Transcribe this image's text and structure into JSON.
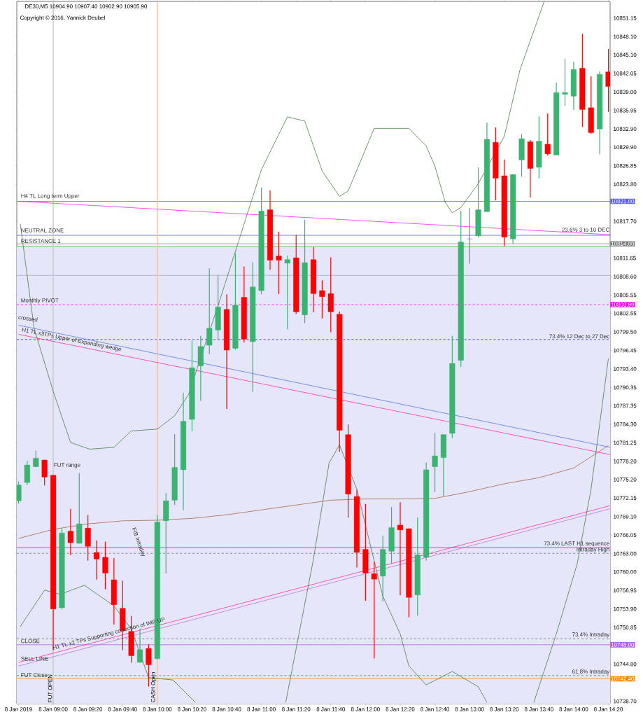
{
  "chart_data": {
    "type": "candlestick",
    "title": "DE30,M5  10904.90 10907.40 10902.90 10905.90",
    "subtitle": "Copyright © 2016, Yannick Deubel",
    "x": [
      "2019-01-08T08:40",
      "2019-01-08T08:45",
      "2019-01-08T08:50",
      "2019-01-08T08:55",
      "2019-01-08T09:00",
      "2019-01-08T09:05",
      "2019-01-08T09:10",
      "2019-01-08T09:15",
      "2019-01-08T09:20",
      "2019-01-08T09:25",
      "2019-01-08T09:30",
      "2019-01-08T09:35",
      "2019-01-08T09:40",
      "2019-01-08T09:45",
      "2019-01-08T09:50",
      "2019-01-08T09:55",
      "2019-01-08T10:00",
      "2019-01-08T10:05",
      "2019-01-08T10:10",
      "2019-01-08T10:15",
      "2019-01-08T10:20",
      "2019-01-08T10:25",
      "2019-01-08T10:30",
      "2019-01-08T10:35",
      "2019-01-08T10:40",
      "2019-01-08T10:45",
      "2019-01-08T10:50",
      "2019-01-08T10:55",
      "2019-01-08T11:00",
      "2019-01-08T11:05",
      "2019-01-08T11:10",
      "2019-01-08T11:15",
      "2019-01-08T11:20",
      "2019-01-08T11:25",
      "2019-01-08T11:30",
      "2019-01-08T11:35",
      "2019-01-08T11:40",
      "2019-01-08T11:45",
      "2019-01-08T11:50",
      "2019-01-08T11:55",
      "2019-01-08T12:00",
      "2019-01-08T12:05",
      "2019-01-08T12:10",
      "2019-01-08T12:15",
      "2019-01-08T12:20",
      "2019-01-08T12:25",
      "2019-01-08T12:30",
      "2019-01-08T12:35",
      "2019-01-08T12:40",
      "2019-01-08T12:45",
      "2019-01-08T12:50",
      "2019-01-08T12:55",
      "2019-01-08T13:00",
      "2019-01-08T13:05",
      "2019-01-08T13:10",
      "2019-01-08T13:15",
      "2019-01-08T13:20",
      "2019-01-08T13:25",
      "2019-01-08T13:30",
      "2019-01-08T13:35",
      "2019-01-08T13:40",
      "2019-01-08T13:45",
      "2019-01-08T13:50",
      "2019-01-08T13:55",
      "2019-01-08T14:00",
      "2019-01-08T14:05",
      "2019-01-08T14:10",
      "2019-01-08T14:15",
      "2019-01-08T14:20"
    ],
    "ohlc": [
      [
        10771.7,
        10774.8,
        10771.3,
        10774.3
      ],
      [
        10774.7,
        10778.2,
        10774.4,
        10777.6
      ],
      [
        10777.3,
        10779.9,
        10777.3,
        10778.7
      ],
      [
        10778.4,
        10778.4,
        10774.3,
        10775.6
      ],
      [
        10775.9,
        10775.9,
        10747.2,
        10753.9
      ],
      [
        10754.1,
        10767.1,
        10753.9,
        10766.4
      ],
      [
        10766.7,
        10770.3,
        10762.8,
        10764.8
      ],
      [
        10764.7,
        10776.2,
        10764.7,
        10767.9
      ],
      [
        10767.2,
        10769.3,
        10761.9,
        10764.2
      ],
      [
        10763.2,
        10765.1,
        10758.8,
        10762.1
      ],
      [
        10762.4,
        10764.9,
        10757.2,
        10759.8
      ],
      [
        10758.7,
        10762.2,
        10751.4,
        10754.6
      ],
      [
        10754.0,
        10758.5,
        10747.2,
        10750.3
      ],
      [
        10750.2,
        10752.7,
        10745.1,
        10746.2
      ],
      [
        10745.1,
        10750.6,
        10745.1,
        10747.2
      ],
      [
        10747.4,
        10748.0,
        10741.2,
        10744.7
      ],
      [
        10745.7,
        10769.3,
        10745.7,
        10768.2
      ],
      [
        10768.4,
        10772.9,
        10759.8,
        10771.7
      ],
      [
        10771.8,
        10782.6,
        10771.1,
        10777.2
      ],
      [
        10776.8,
        10789.4,
        10770.2,
        10784.8
      ],
      [
        10785.1,
        10798.0,
        10783.2,
        10793.6
      ],
      [
        10793.9,
        10798.8,
        10788.2,
        10797.1
      ],
      [
        10797.3,
        10809.9,
        10795.9,
        10800.1
      ],
      [
        10799.8,
        10808.8,
        10798.2,
        10803.6
      ],
      [
        10803.2,
        10805.6,
        10786.9,
        10796.5
      ],
      [
        10796.8,
        10812.4,
        10796.6,
        10803.9
      ],
      [
        10805.2,
        10810.2,
        10797.8,
        10798.3
      ],
      [
        10797.9,
        10810.9,
        10789.7,
        10806.9
      ],
      [
        10806.3,
        10823.2,
        10805.8,
        10819.4
      ],
      [
        10819.6,
        10822.7,
        10809.8,
        10811.3
      ],
      [
        10812.0,
        10815.9,
        10805.8,
        10811.3
      ],
      [
        10810.8,
        10812.0,
        10800.0,
        10811.4
      ],
      [
        10811.7,
        10815.4,
        10802.5,
        10802.8
      ],
      [
        10802.3,
        10817.9,
        10801.0,
        10810.9
      ],
      [
        10811.4,
        10813.4,
        10802.8,
        10805.8
      ],
      [
        10806.3,
        10807.9,
        10801.8,
        10805.3
      ],
      [
        10805.8,
        10811.7,
        10799.5,
        10802.8
      ],
      [
        10802.4,
        10802.8,
        10779.8,
        10783.3
      ],
      [
        10782.6,
        10784.2,
        10769.0,
        10772.8
      ],
      [
        10772.4,
        10773.4,
        10760.8,
        10763.2
      ],
      [
        10763.7,
        10771.1,
        10755.3,
        10759.8
      ],
      [
        10759.7,
        10761.6,
        10745.8,
        10758.8
      ],
      [
        10759.3,
        10765.9,
        10755.2,
        10763.7
      ],
      [
        10763.4,
        10770.6,
        10761.4,
        10767.3
      ],
      [
        10767.7,
        10771.4,
        10756.2,
        10766.9
      ],
      [
        10767.1,
        10767.1,
        10752.6,
        10755.8
      ],
      [
        10756.2,
        10768.9,
        10752.9,
        10762.8
      ],
      [
        10762.4,
        10777.9,
        10761.9,
        10776.8
      ],
      [
        10777.3,
        10782.8,
        10773.2,
        10779.1
      ],
      [
        10778.8,
        10782.6,
        10772.5,
        10782.6
      ],
      [
        10782.8,
        10798.8,
        10782.1,
        10794.3
      ],
      [
        10794.8,
        10819.4,
        10793.8,
        10814.3
      ],
      [
        10814.8,
        10819.8,
        10810.8,
        10814.8
      ],
      [
        10815.3,
        10826.5,
        10815.1,
        10819.6
      ],
      [
        10819.3,
        10833.9,
        10819.3,
        10831.2
      ],
      [
        10830.7,
        10833.1,
        10821.2,
        10824.8
      ],
      [
        10825.2,
        10827.8,
        10813.7,
        10815.1
      ],
      [
        10814.8,
        10825.4,
        10814.1,
        10825.4
      ],
      [
        10827.8,
        10832.0,
        10825.1,
        10831.3
      ],
      [
        10830.8,
        10831.0,
        10821.7,
        10826.4
      ],
      [
        10826.6,
        10834.9,
        10824.8,
        10830.9
      ],
      [
        10830.4,
        10835.4,
        10828.6,
        10828.8
      ],
      [
        10828.6,
        10840.5,
        10828.6,
        10838.9
      ],
      [
        10838.6,
        10844.4,
        10836.8,
        10838.9
      ],
      [
        10838.3,
        10843.9,
        10836.1,
        10842.7
      ],
      [
        10842.9,
        10848.5,
        10833.3,
        10836.1
      ],
      [
        10836.4,
        10841.5,
        10832.2,
        10832.3
      ],
      [
        10832.9,
        10842.3,
        10828.8,
        10841.9
      ],
      [
        10842.3,
        10846.0,
        10835.8,
        10839.9
      ]
    ],
    "colors": [
      "#3cb371",
      "#3cb371",
      "#3cb371",
      "#ff0000",
      "#ff0000",
      "#3cb371",
      "#ff0000",
      "#3cb371",
      "#ff0000",
      "#ff0000",
      "#ff0000",
      "#ff0000",
      "#ff0000",
      "#ff0000",
      "#3cb371",
      "#ff0000",
      "#3cb371",
      "#3cb371",
      "#3cb371",
      "#3cb371",
      "#3cb371",
      "#3cb371",
      "#3cb371",
      "#3cb371",
      "#ff0000",
      "#3cb371",
      "#ff0000",
      "#3cb371",
      "#3cb371",
      "#ff0000",
      "#ff0000",
      "#3cb371",
      "#ff0000",
      "#3cb371",
      "#ff0000",
      "#ff0000",
      "#ff0000",
      "#ff0000",
      "#ff0000",
      "#ff0000",
      "#ff0000",
      "#ff0000",
      "#3cb371",
      "#3cb371",
      "#ff0000",
      "#ff0000",
      "#3cb371",
      "#3cb371",
      "#3cb371",
      "#3cb371",
      "#3cb371",
      "#3cb371",
      "#808080",
      "#3cb371",
      "#3cb371",
      "#ff0000",
      "#ff0000",
      "#3cb371",
      "#3cb371",
      "#ff0000",
      "#3cb371",
      "#ff0000",
      "#3cb371",
      "#3cb371",
      "#3cb371",
      "#ff0000",
      "#ff0000",
      "#3cb371",
      "#ff0000"
    ],
    "series": [
      {
        "type": "line",
        "color": "#a0522d",
        "x": [
          "2019-01-08T08:40",
          "2019-01-08T09:00",
          "2019-01-08T09:20",
          "2019-01-08T09:40",
          "2019-01-08T10:00",
          "2019-01-08T10:20",
          "2019-01-08T10:40",
          "2019-01-08T11:00",
          "2019-01-08T11:20",
          "2019-01-08T11:40",
          "2019-01-08T12:00",
          "2019-01-08T12:20",
          "2019-01-08T12:40",
          "2019-01-08T13:00",
          "2019-01-08T13:20",
          "2019-01-08T13:40",
          "2019-01-08T14:00",
          "2019-01-08T14:20"
        ],
        "values": [
          10765.5,
          10767.0,
          10767.9,
          10768.4,
          10768.5,
          10768.8,
          10769.4,
          10770.2,
          10771.0,
          10771.8,
          10772.0,
          10772.0,
          10772.1,
          10773.2,
          10774.5,
          10775.5,
          10777.1,
          10780.8
        ]
      },
      {
        "type": "line",
        "color": "#4169e1",
        "x": [
          "2019-01-08T08:40",
          "2019-01-08T14:21"
        ],
        "values": [
          10800.6,
          10780.5
        ]
      },
      {
        "type": "line",
        "color": "#ff1493",
        "x": [
          "2019-01-08T08:40",
          "2019-01-08T14:21"
        ],
        "values": [
          10799.1,
          10779.3
        ]
      },
      {
        "type": "line",
        "color": "#ff00ff",
        "x": [
          "2019-01-08T08:40",
          "2019-01-08T14:21"
        ],
        "values": [
          10821.0,
          10815.5
        ]
      },
      {
        "type": "line",
        "color": "#ff1493",
        "x": [
          "2019-01-08T08:40",
          "2019-01-08T14:21"
        ],
        "values": [
          10745.1,
          10770.9
        ]
      },
      {
        "type": "line",
        "color": "#c060e0",
        "x": [
          "2019-01-08T08:40",
          "2019-01-08T14:21"
        ],
        "values": [
          10744.5,
          10770.4
        ]
      },
      {
        "type": "line",
        "color": "#2e6b2e",
        "x": [
          "2019-01-08T08:41",
          "2019-01-08T08:49",
          "2019-01-08T09:00",
          "2019-01-08T09:10",
          "2019-01-08T09:21",
          "2019-01-08T09:35",
          "2019-01-08T09:45",
          "2019-01-08T10:00",
          "2019-01-08T10:10",
          "2019-01-08T10:18",
          "2019-01-08T10:23",
          "2019-01-08T10:36",
          "2019-01-08T11:00",
          "2019-01-08T11:15",
          "2019-01-08T11:25",
          "2019-01-08T11:35",
          "2019-01-08T11:45",
          "2019-01-08T11:50",
          "2019-01-08T12:05",
          "2019-01-08T12:25",
          "2019-01-08T12:35",
          "2019-01-08T12:40",
          "2019-01-08T12:46",
          "2019-01-08T12:50",
          "2019-01-08T12:55",
          "2019-01-08T13:05",
          "2019-01-08T13:20",
          "2019-01-08T13:29",
          "2019-01-08T13:43"
        ],
        "values": [
          10817.3,
          10800.1,
          10789.7,
          10781.3,
          10780.2,
          10780.5,
          10783.2,
          10783.5,
          10785.7,
          10789.2,
          10793.5,
          10804.7,
          10826.2,
          10834.9,
          10834.2,
          10826.0,
          10821.8,
          10822.7,
          10833.0,
          10833.0,
          10830.1,
          10826.8,
          10820.8,
          10819.1,
          10820.0,
          10823.9,
          10831.7,
          10842.6,
          10853.9
        ]
      },
      {
        "type": "line",
        "color": "#2e6b2e",
        "x": [
          "2019-01-08T08:41",
          "2019-01-08T08:55",
          "2019-01-08T09:04",
          "2019-01-08T09:18",
          "2019-01-08T09:35",
          "2019-01-08T09:45",
          "2019-01-08T09:55",
          "2019-01-08T10:09",
          "2019-01-08T10:22",
          "2019-01-08T10:48",
          "2019-01-08T11:14",
          "2019-01-08T11:30",
          "2019-01-08T11:39",
          "2019-01-08T11:45",
          "2019-01-08T11:55",
          "2019-01-08T12:05",
          "2019-01-08T12:10",
          "2019-01-08T12:20",
          "2019-01-08T12:25",
          "2019-01-08T12:35",
          "2019-01-08T12:50",
          "2019-01-08T13:05",
          "2019-01-08T13:10",
          "2019-01-08T13:24",
          "2019-01-08T13:37",
          "2019-01-08T13:50",
          "2019-01-08T14:02",
          "2019-01-08T14:10",
          "2019-01-08T14:20"
        ],
        "values": [
          10751.0,
          10757.0,
          10756.3,
          10757.8,
          10754.4,
          10750.6,
          10742.6,
          10742.2,
          10738.5,
          null,
          10738.5,
          10762.1,
          10777.9,
          10780.9,
          10773.6,
          10761.8,
          10756.0,
          10749.8,
          10744.5,
          10741.4,
          10743.6,
          10741.1,
          10738.5,
          null,
          10738.5,
          10749.8,
          10761.3,
          10773.6,
          10795.1
        ]
      }
    ],
    "bands": [
      {
        "axis": "y",
        "from": 10738.3,
        "to": 10813.55,
        "color": "#e6e6fa"
      }
    ],
    "ref_lines": [
      {
        "axis": "y",
        "value": 10821.0,
        "label": "10821.00",
        "color": "#5a5aff"
      },
      {
        "axis": "y",
        "value": 10815.4,
        "color": "#5a5aff"
      },
      {
        "axis": "y",
        "value": 10814.0,
        "label": "10814.00",
        "color": "#808080"
      },
      {
        "axis": "y",
        "value": 10813.55,
        "color": "#22cc22"
      },
      {
        "axis": "y",
        "value": 10808.8,
        "color": "#a8b0c8"
      },
      {
        "axis": "y",
        "value": 10803.99,
        "label": "10803.99",
        "color": "#ff00ff",
        "line_style": "dashed"
      },
      {
        "axis": "y",
        "value": 10798.25,
        "color": "#2020e0",
        "line_style": "dashed"
      },
      {
        "axis": "y",
        "value": 10764.0,
        "color": "#ff1493"
      },
      {
        "axis": "y",
        "value": 10763.05,
        "color": "#707070",
        "line_style": "dashed"
      },
      {
        "axis": "y",
        "value": 10749.0,
        "color": "#707070",
        "line_style": "dashed"
      },
      {
        "axis": "y",
        "value": 10748.0,
        "label": "10748.00",
        "color": "#b060e0"
      },
      {
        "axis": "y",
        "value": 10742.93,
        "color": "#707070",
        "line_style": "dashed"
      },
      {
        "axis": "y",
        "value": 10742.4,
        "label": "10742.40",
        "color": "#ff8c00"
      },
      {
        "axis": "x",
        "value": "2019-01-08T09:00",
        "label": "FUT OPEN",
        "color": "#c8c8d0"
      },
      {
        "axis": "x",
        "value": "2019-01-08T10:00",
        "label": "CASH Open",
        "color": "#f0c0a8"
      }
    ],
    "annotations": [
      {
        "text": "H4 TL Long term Upper",
        "x": "2019-01-08T08:41",
        "y": 10821.3
      },
      {
        "text": "NEUTRAL ZONE",
        "x": "2019-01-08T08:41",
        "y": 10815.8
      },
      {
        "text": "RESISTANCE 1",
        "x": "2019-01-08T08:41",
        "y": 10814.05
      },
      {
        "text": "Monthly PIVOT",
        "x": "2019-01-08T08:41",
        "y": 10804.1
      },
      "crossed",
      {
        "text": "H1 TL x3TPs Upper of Expanding wedge",
        "x": "2019-01-08T08:42",
        "y": 10800.35
      },
      {
        "text": "73.4% 12 Dec to 27 Dec",
        "x": "2019-01-08T14:21",
        "y": 10798.35
      },
      {
        "text": "23.6% 3 to 10 DEC",
        "x": "2019-01-08T14:21",
        "y": 10815.9
      },
      {
        "text": "FUT range",
        "x": "2019-01-08T09:00",
        "y": 10777.0
      },
      "FIB Intraday",
      {
        "text": "H1 TL x2 TPs Supporting correction of IMP UP",
        "x": "2019-01-08T09:00",
        "y": 10746.9
      },
      {
        "text": "CLOSE",
        "x": "2019-01-08T08:41",
        "y": 10748.2
      },
      {
        "text": "SELL LINE",
        "x": "2019-01-08T08:41",
        "y": 10745.3
      },
      {
        "text": "FUT Close",
        "x": "2019-01-08T08:41",
        "y": 10742.6
      },
      {
        "text": "73.4% LAST H1 sequence",
        "x": "2019-01-08T14:21",
        "y": 10764.1
      },
      {
        "text": "Intraday High",
        "x": "2019-01-08T14:21",
        "y": 10763.1
      },
      {
        "text": "73.4% Intraday",
        "x": "2019-01-08T14:21",
        "y": 10749.1
      },
      {
        "text": "61.8% Intraday",
        "x": "2019-01-08T14:21",
        "y": 10743.0
      }
    ],
    "xlim": [
      "2019-01-08T08:39",
      "2019-01-08T14:21"
    ],
    "ylim": [
      10738.3,
      10853.9
    ],
    "xticks": [
      {
        "value": "2019-01-08T08:40",
        "label": "8 Jan 2019"
      },
      {
        "value": "2019-01-08T09:00",
        "label": "8 Jan 09:00"
      },
      {
        "value": "2019-01-08T09:20",
        "label": "8 Jan 09:20"
      },
      {
        "value": "2019-01-08T09:40",
        "label": "8 Jan 09:40"
      },
      {
        "value": "2019-01-08T10:00",
        "label": "8 Jan 10:00"
      },
      {
        "value": "2019-01-08T10:20",
        "label": "8 Jan 10:20"
      },
      {
        "value": "2019-01-08T10:40",
        "label": "8 Jan 10:40"
      },
      {
        "value": "2019-01-08T11:00",
        "label": "8 Jan 11:00"
      },
      {
        "value": "2019-01-08T11:20",
        "label": "8 Jan 11:20"
      },
      {
        "value": "2019-01-08T11:40",
        "label": "8 Jan 11:40"
      },
      {
        "value": "2019-01-08T12:00",
        "label": "8 Jan 12:00"
      },
      {
        "value": "2019-01-08T12:20",
        "label": "8 Jan 12:20"
      },
      {
        "value": "2019-01-08T12:40",
        "label": "8 Jan 12:40"
      },
      {
        "value": "2019-01-08T13:00",
        "label": "8 Jan 13:00"
      },
      {
        "value": "2019-01-08T13:20",
        "label": "8 Jan 13:20"
      },
      {
        "value": "2019-01-08T13:40",
        "label": "8 Jan 13:40"
      },
      {
        "value": "2019-01-08T14:00",
        "label": "8 Jan 14:00"
      },
      {
        "value": "2019-01-08T14:20",
        "label": "8 Jan 14:20"
      }
    ],
    "yticks": [
      {
        "value": 10851.15,
        "label": "10851.15"
      },
      {
        "value": 10848.1,
        "label": "10848.10"
      },
      {
        "value": 10845.1,
        "label": "10845.10"
      },
      {
        "value": 10842.05,
        "label": "10842.05"
      },
      {
        "value": 10839.0,
        "label": "10839.00"
      },
      {
        "value": 10835.95,
        "label": "10835.95"
      },
      {
        "value": 10832.9,
        "label": "10832.90"
      },
      {
        "value": 10829.9,
        "label": "10829.90"
      },
      {
        "value": 10826.85,
        "label": "10826.85"
      },
      {
        "value": 10823.8,
        "label": "10823.80"
      },
      {
        "value": 10817.7,
        "label": "10817.70"
      },
      {
        "value": 10811.65,
        "label": "10811.65"
      },
      {
        "value": 10808.6,
        "label": "10808.60"
      },
      {
        "value": 10805.55,
        "label": "10805.55"
      },
      {
        "value": 10802.55,
        "label": "10802.55"
      },
      {
        "value": 10799.5,
        "label": "10799.50"
      },
      {
        "value": 10796.45,
        "label": "10796.45"
      },
      {
        "value": 10793.4,
        "label": "10793.40"
      },
      {
        "value": 10790.35,
        "label": "10790.35"
      },
      {
        "value": 10787.35,
        "label": "10787.35"
      },
      {
        "value": 10784.3,
        "label": "10784.30"
      },
      {
        "value": 10781.25,
        "label": "10781.25"
      },
      {
        "value": 10778.2,
        "label": "10778.20"
      },
      {
        "value": 10775.2,
        "label": "10775.20"
      },
      {
        "value": 10772.15,
        "label": "10772.15"
      },
      {
        "value": 10769.1,
        "label": "10769.10"
      },
      {
        "value": 10766.05,
        "label": "10766.05"
      },
      {
        "value": 10763.0,
        "label": "10763.00"
      },
      {
        "value": 10760.0,
        "label": "10760.00"
      },
      {
        "value": 10756.95,
        "label": "10756.95"
      },
      {
        "value": 10753.9,
        "label": "10753.90"
      },
      {
        "value": 10750.85,
        "label": "10750.85"
      },
      {
        "value": 10744.8,
        "label": "10744.80"
      },
      {
        "value": 10738.7,
        "label": "10738.70"
      }
    ]
  }
}
